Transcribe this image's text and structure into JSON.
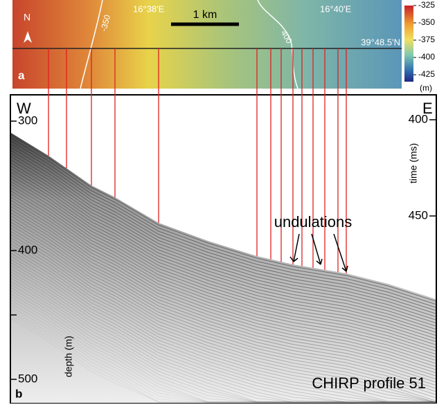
{
  "map": {
    "panel_label": "a",
    "north": "N",
    "lon_left": "16°38'E",
    "lon_right": "16°40'E",
    "lat": "39°48.5'N",
    "scale_bar": "1 km",
    "contour_left": "-350",
    "contour_right": "400",
    "colorbar": {
      "labels": [
        "-325",
        "-350",
        "-375",
        "-400",
        "-425"
      ],
      "unit": "(m)"
    }
  },
  "profile": {
    "panel_label": "b",
    "west": "W",
    "east": "E",
    "depth_label": "depth (m)",
    "depth_ticks": [
      "300",
      "400",
      "500"
    ],
    "time_label": "time (ms)",
    "time_ticks": [
      "400",
      "450"
    ],
    "annotation": "undulations",
    "caption": "CHIRP profile 51"
  }
}
